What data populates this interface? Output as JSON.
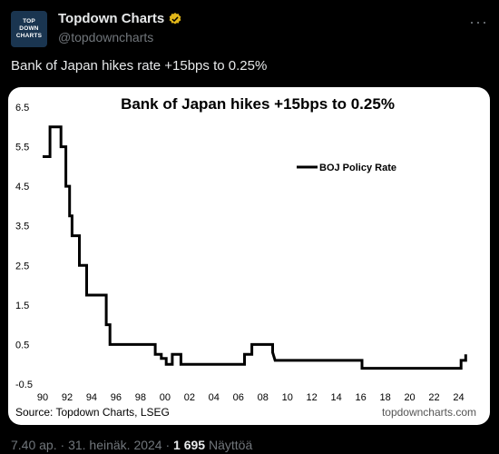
{
  "tweet": {
    "avatar_lines": [
      "TOP",
      "DOWN",
      "CHARTS"
    ],
    "display_name": "Topdown Charts",
    "handle": "@topdowncharts",
    "more_icon": "more-horizontal-icon",
    "verified_icon": "verified-badge-icon",
    "verified_color": "#e2b719",
    "text": "Bank of Japan hikes rate +15bps to 0.25%",
    "time": "7.40 ap.",
    "separator": "·",
    "date": "31. heinäk. 2024",
    "views_count": "1 695",
    "views_label": "Näyttöä"
  },
  "chart_data": {
    "type": "line",
    "title": "Bank of Japan hikes +15bps to 0.25%",
    "source": "Source: Topdown Charts, LSEG",
    "watermark": "topdowncharts.com",
    "legend_position": "top-right",
    "grid": false,
    "line_color": "#000000",
    "xlim": [
      1990,
      2025
    ],
    "ylim": [
      -0.5,
      6.5
    ],
    "x_ticks": [
      {
        "x": 1990,
        "label": "90"
      },
      {
        "x": 1992,
        "label": "92"
      },
      {
        "x": 1994,
        "label": "94"
      },
      {
        "x": 1996,
        "label": "96"
      },
      {
        "x": 1998,
        "label": "98"
      },
      {
        "x": 2000,
        "label": "00"
      },
      {
        "x": 2002,
        "label": "02"
      },
      {
        "x": 2004,
        "label": "04"
      },
      {
        "x": 2006,
        "label": "06"
      },
      {
        "x": 2008,
        "label": "08"
      },
      {
        "x": 2010,
        "label": "10"
      },
      {
        "x": 2012,
        "label": "12"
      },
      {
        "x": 2014,
        "label": "14"
      },
      {
        "x": 2016,
        "label": "16"
      },
      {
        "x": 2018,
        "label": "18"
      },
      {
        "x": 2020,
        "label": "20"
      },
      {
        "x": 2022,
        "label": "22"
      },
      {
        "x": 2024,
        "label": "24"
      }
    ],
    "y_ticks": [
      6.5,
      5.5,
      4.5,
      3.5,
      2.5,
      1.5,
      0.5,
      -0.5
    ],
    "y_tick_labels": [
      "6.5",
      "5.5",
      "4.5",
      "3.5",
      "2.5",
      "1.5",
      "0.5",
      "-0.5"
    ],
    "series": [
      {
        "name": "BOJ Policy Rate",
        "points": [
          [
            1990.0,
            5.25
          ],
          [
            1990.6,
            5.25
          ],
          [
            1990.6,
            6.0
          ],
          [
            1991.5,
            6.0
          ],
          [
            1991.5,
            5.5
          ],
          [
            1991.9,
            5.5
          ],
          [
            1991.9,
            4.5
          ],
          [
            1992.2,
            4.5
          ],
          [
            1992.2,
            3.75
          ],
          [
            1992.4,
            3.75
          ],
          [
            1992.4,
            3.25
          ],
          [
            1993.0,
            3.25
          ],
          [
            1993.0,
            2.5
          ],
          [
            1993.6,
            2.5
          ],
          [
            1993.6,
            1.75
          ],
          [
            1995.2,
            1.75
          ],
          [
            1995.2,
            1.0
          ],
          [
            1995.5,
            1.0
          ],
          [
            1995.5,
            0.5
          ],
          [
            1999.2,
            0.5
          ],
          [
            1999.2,
            0.25
          ],
          [
            1999.7,
            0.25
          ],
          [
            1999.7,
            0.15
          ],
          [
            2000.1,
            0.15
          ],
          [
            2000.1,
            0.0
          ],
          [
            2000.6,
            0.0
          ],
          [
            2000.6,
            0.25
          ],
          [
            2001.3,
            0.25
          ],
          [
            2001.3,
            0.0
          ],
          [
            2006.5,
            0.0
          ],
          [
            2006.5,
            0.25
          ],
          [
            2007.1,
            0.25
          ],
          [
            2007.1,
            0.5
          ],
          [
            2008.8,
            0.5
          ],
          [
            2008.8,
            0.3
          ],
          [
            2009.0,
            0.1
          ],
          [
            2016.1,
            0.1
          ],
          [
            2016.1,
            -0.1
          ],
          [
            2024.2,
            -0.1
          ],
          [
            2024.2,
            0.1
          ],
          [
            2024.58,
            0.1
          ],
          [
            2024.58,
            0.25
          ]
        ]
      }
    ]
  }
}
